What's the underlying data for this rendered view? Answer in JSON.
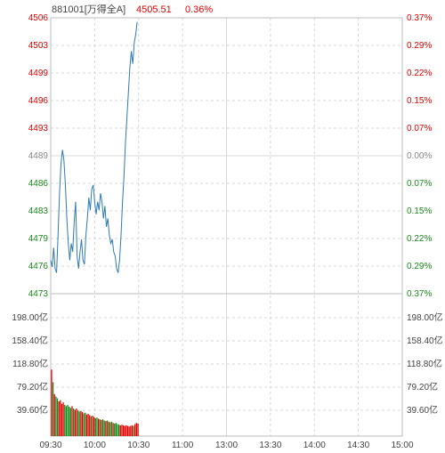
{
  "header": {
    "code_name": "881001[万得全A]",
    "price": "4505.51",
    "change_pct": "0.36%"
  },
  "colors": {
    "up": "#e60000",
    "down": "#1a8a1a",
    "flat": "#888888",
    "line": "#2e7bb4",
    "grid": "#d8d8d8",
    "text": "#444444"
  },
  "chart_data": {
    "type": "line",
    "price_axis": {
      "ylim": [
        4473,
        4506
      ],
      "prev_close": 4489,
      "ticks": [
        "4506",
        "4503",
        "4499",
        "4496",
        "4493",
        "4489",
        "4486",
        "4483",
        "4479",
        "4476",
        "4473"
      ],
      "pct_ticks": [
        "0.37%",
        "0.29%",
        "0.22%",
        "0.15%",
        "0.07%",
        "0.00%",
        "0.07%",
        "0.15%",
        "0.22%",
        "0.29%",
        "0.37%"
      ]
    },
    "volume_axis": {
      "ylim": [
        0,
        237.6
      ],
      "ticks": [
        "198.00亿",
        "158.40亿",
        "118.80亿",
        "79.20亿",
        "39.60亿"
      ]
    },
    "time_ticks": [
      "09:30",
      "10:00",
      "10:30",
      "11:00",
      "13:00",
      "13:30",
      "14:00",
      "14:30",
      "15:00"
    ],
    "total_minutes": 240,
    "price_series": [
      [
        0,
        4477
      ],
      [
        1,
        4476.2
      ],
      [
        2,
        4478.5
      ],
      [
        3,
        4476
      ],
      [
        4,
        4475.5
      ],
      [
        5,
        4480
      ],
      [
        6,
        4485
      ],
      [
        7,
        4488.5
      ],
      [
        8,
        4490.2
      ],
      [
        9,
        4489
      ],
      [
        10,
        4486
      ],
      [
        11,
        4482
      ],
      [
        12,
        4479
      ],
      [
        13,
        4477
      ],
      [
        14,
        4479
      ],
      [
        15,
        4478
      ],
      [
        16,
        4481.5
      ],
      [
        17,
        4484
      ],
      [
        18,
        4477.5
      ],
      [
        19,
        4476
      ],
      [
        20,
        4478
      ],
      [
        21,
        4479.5
      ],
      [
        22,
        4477
      ],
      [
        23,
        4476.5
      ],
      [
        24,
        4480
      ],
      [
        25,
        4482
      ],
      [
        26,
        4484.5
      ],
      [
        27,
        4483
      ],
      [
        28,
        4485.5
      ],
      [
        29,
        4486
      ],
      [
        30,
        4484
      ],
      [
        31,
        4482.5
      ],
      [
        32,
        4484
      ],
      [
        33,
        4483
      ],
      [
        34,
        4485
      ],
      [
        35,
        4484
      ],
      [
        36,
        4482
      ],
      [
        37,
        4483.5
      ],
      [
        38,
        4481
      ],
      [
        39,
        4482
      ],
      [
        40,
        4480
      ],
      [
        41,
        4479
      ],
      [
        42,
        4479.5
      ],
      [
        43,
        4478
      ],
      [
        44,
        4477.5
      ],
      [
        45,
        4476
      ],
      [
        46,
        4475.5
      ],
      [
        47,
        4477
      ],
      [
        48,
        4480
      ],
      [
        49,
        4484
      ],
      [
        50,
        4487
      ],
      [
        51,
        4491
      ],
      [
        52,
        4494
      ],
      [
        53,
        4497
      ],
      [
        54,
        4500
      ],
      [
        55,
        4502
      ],
      [
        56,
        4500.5
      ],
      [
        57,
        4503
      ],
      [
        58,
        4504
      ],
      [
        59,
        4505.51
      ]
    ],
    "volume_series": [
      [
        0,
        111
      ],
      [
        1,
        90
      ],
      [
        2,
        70
      ],
      [
        3,
        66
      ],
      [
        4,
        63
      ],
      [
        5,
        58
      ],
      [
        6,
        60
      ],
      [
        7,
        54
      ],
      [
        8,
        56
      ],
      [
        9,
        52
      ],
      [
        10,
        50
      ],
      [
        11,
        52
      ],
      [
        12,
        49
      ],
      [
        13,
        47
      ],
      [
        14,
        50
      ],
      [
        15,
        46
      ],
      [
        16,
        44
      ],
      [
        17,
        46
      ],
      [
        18,
        43
      ],
      [
        19,
        41
      ],
      [
        20,
        42
      ],
      [
        21,
        40
      ],
      [
        22,
        38
      ],
      [
        23,
        39
      ],
      [
        24,
        36
      ],
      [
        25,
        37
      ],
      [
        26,
        35
      ],
      [
        27,
        33
      ],
      [
        28,
        34
      ],
      [
        29,
        32
      ],
      [
        30,
        30
      ],
      [
        31,
        31
      ],
      [
        32,
        29
      ],
      [
        33,
        28
      ],
      [
        34,
        27
      ],
      [
        35,
        28
      ],
      [
        36,
        26
      ],
      [
        37,
        25
      ],
      [
        38,
        26
      ],
      [
        39,
        24
      ],
      [
        40,
        23
      ],
      [
        41,
        24
      ],
      [
        42,
        22
      ],
      [
        43,
        21
      ],
      [
        44,
        22
      ],
      [
        45,
        20
      ],
      [
        46,
        19
      ],
      [
        47,
        18
      ],
      [
        48,
        19
      ],
      [
        49,
        18
      ],
      [
        50,
        17
      ],
      [
        51,
        18
      ],
      [
        52,
        17
      ],
      [
        53,
        16
      ],
      [
        54,
        17
      ],
      [
        55,
        18
      ],
      [
        56,
        17
      ],
      [
        57,
        20
      ],
      [
        58,
        22
      ],
      [
        59,
        21
      ]
    ],
    "grid": true
  }
}
